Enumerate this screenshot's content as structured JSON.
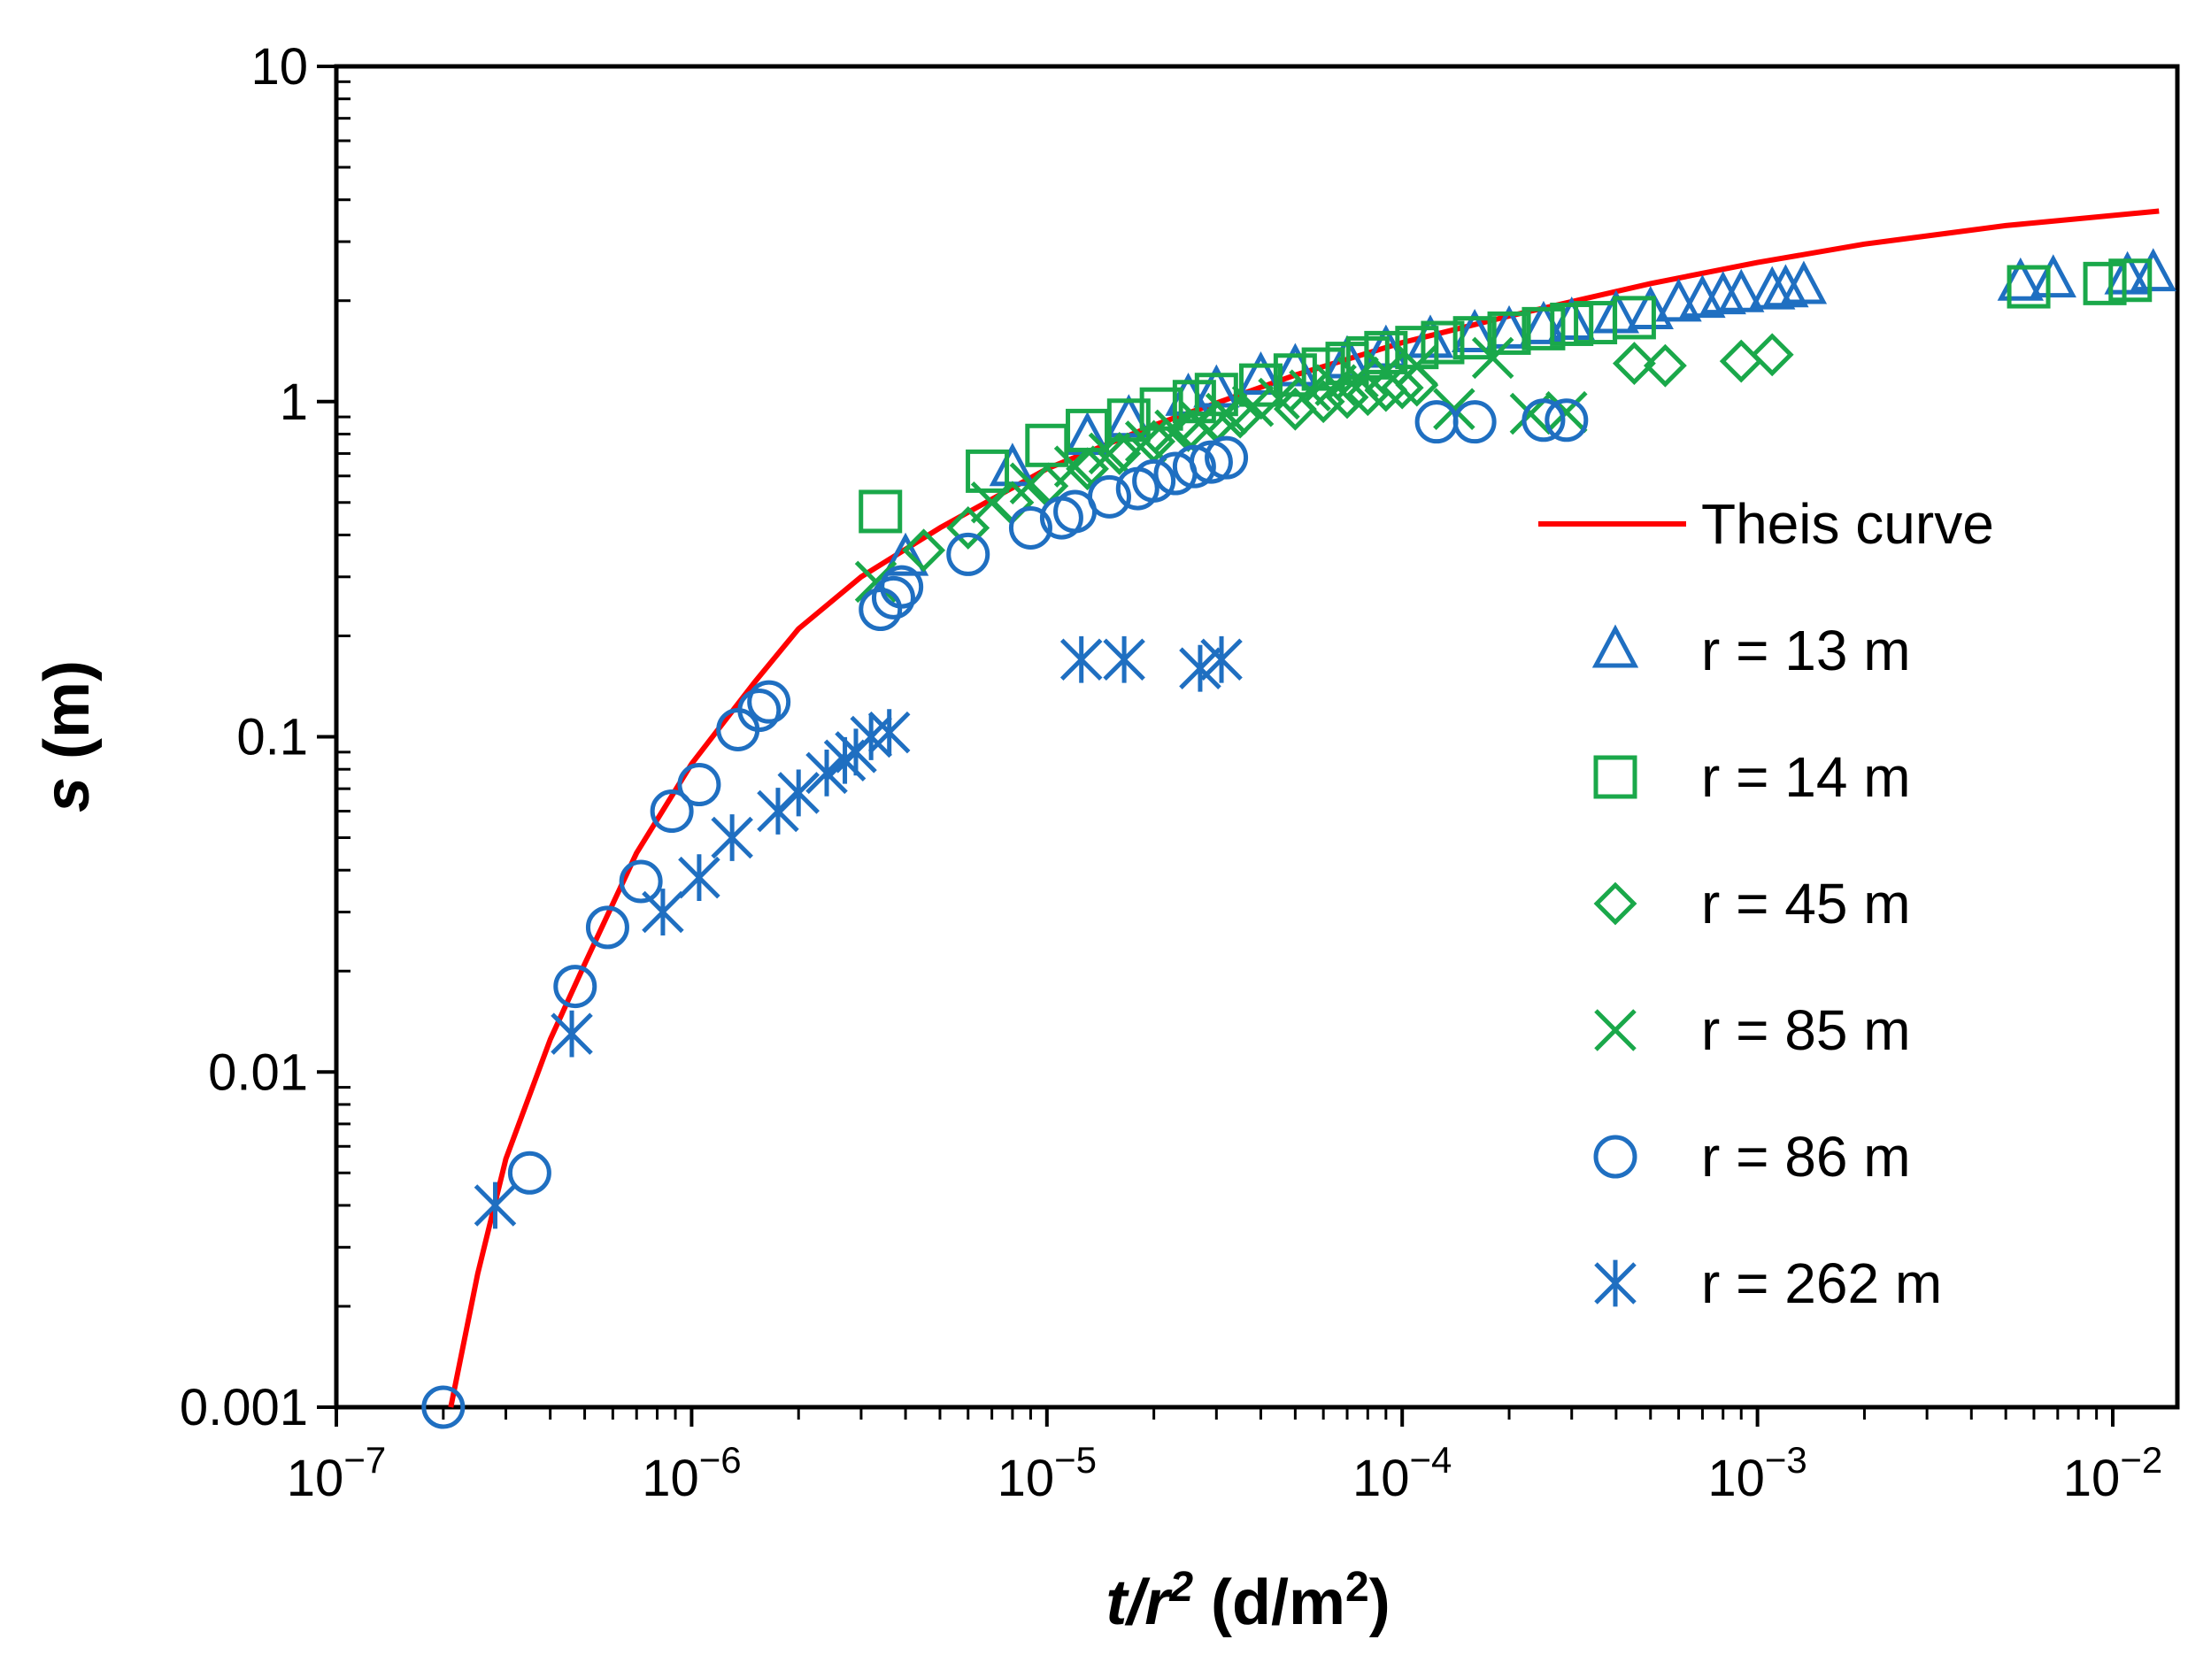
{
  "chart_data": {
    "type": "scatter",
    "title": "",
    "xlabel": {
      "italic": "t/r",
      "sup": "2",
      "rest": " (d/m",
      "rest_sup": "2",
      "close": ")"
    },
    "ylabel": {
      "italic": "s",
      "rest": " (m)"
    },
    "x_scale": "log",
    "y_scale": "log",
    "xlim": [
      1e-07,
      0.0152
    ],
    "ylim": [
      0.001,
      10
    ],
    "x_ticks": [
      {
        "value": 1e-07,
        "base": "10",
        "exp": "−7"
      },
      {
        "value": 1e-06,
        "base": "10",
        "exp": "−6"
      },
      {
        "value": 1e-05,
        "base": "10",
        "exp": "−5"
      },
      {
        "value": 0.0001,
        "base": "10",
        "exp": "−4"
      },
      {
        "value": 0.001,
        "base": "10",
        "exp": "−3"
      },
      {
        "value": 0.01,
        "base": "10",
        "exp": "−2"
      }
    ],
    "y_ticks": [
      {
        "value": 0.001,
        "label": "0.001"
      },
      {
        "value": 0.01,
        "label": "0.01"
      },
      {
        "value": 0.1,
        "label": "0.1"
      },
      {
        "value": 1,
        "label": "1"
      },
      {
        "value": 10,
        "label": "10"
      }
    ],
    "grid": false,
    "legend_position": "right",
    "colors": {
      "red": "#ff0000",
      "blue": "#1f6fc1",
      "green": "#1aa84a"
    },
    "curve": {
      "name": "Theis curve",
      "color": "#ff0000",
      "x": [
        2.1e-07,
        2.5e-07,
        3e-07,
        4e-07,
        5e-07,
        7e-07,
        1e-06,
        1.5e-06,
        2e-06,
        3e-06,
        5e-06,
        1e-05,
        2e-05,
        5e-05,
        0.0001,
        0.0002,
        0.0005,
        0.001,
        0.002,
        0.005,
        0.0135
      ],
      "y": [
        0.001,
        0.0025,
        0.0055,
        0.0125,
        0.021,
        0.045,
        0.083,
        0.145,
        0.21,
        0.3,
        0.42,
        0.63,
        0.85,
        1.2,
        1.5,
        1.8,
        2.25,
        2.6,
        2.95,
        3.35,
        3.7
      ]
    },
    "series": [
      {
        "name": "r = 13 m",
        "marker": "triangle",
        "color": "#1f6fc1",
        "x": [
          4e-06,
          8e-06,
          1.3e-05,
          1.7e-05,
          2.5e-05,
          3e-05,
          4e-05,
          5e-05,
          7e-05,
          9e-05,
          0.00012,
          0.00016,
          0.0002,
          0.00025,
          0.0003,
          0.0004,
          0.0005,
          0.0006,
          0.0007,
          0.0008,
          0.0009,
          0.0011,
          0.0012,
          0.00135,
          0.0055,
          0.0068,
          0.011,
          0.013
        ],
        "y": [
          0.34,
          0.63,
          0.78,
          0.88,
          1.02,
          1.08,
          1.18,
          1.25,
          1.32,
          1.42,
          1.52,
          1.58,
          1.62,
          1.67,
          1.72,
          1.8,
          1.85,
          1.95,
          2.0,
          2.05,
          2.08,
          2.12,
          2.15,
          2.2,
          2.25,
          2.3,
          2.35,
          2.4
        ]
      },
      {
        "name": "r = 14 m",
        "marker": "square",
        "color": "#1aa84a",
        "x": [
          3.4e-06,
          6.8e-06,
          1e-05,
          1.3e-05,
          1.7e-05,
          2.1e-05,
          2.6e-05,
          3e-05,
          4e-05,
          5e-05,
          6e-05,
          7e-05,
          8e-05,
          9e-05,
          0.00011,
          0.00013,
          0.00016,
          0.0002,
          0.00025,
          0.0003,
          0.00035,
          0.00045,
          0.0058,
          0.0095,
          0.0112
        ],
        "y": [
          0.47,
          0.62,
          0.74,
          0.82,
          0.88,
          0.95,
          1.0,
          1.05,
          1.12,
          1.2,
          1.25,
          1.3,
          1.35,
          1.4,
          1.45,
          1.5,
          1.55,
          1.6,
          1.65,
          1.7,
          1.72,
          1.78,
          2.2,
          2.25,
          2.3
        ]
      },
      {
        "name": "r = 45 m",
        "marker": "diamond",
        "color": "#1aa84a",
        "x": [
          4.5e-06,
          6e-06,
          8e-06,
          1e-05,
          1.3e-05,
          1.6e-05,
          2e-05,
          2.5e-05,
          3e-05,
          3.5e-05,
          5e-05,
          6e-05,
          7e-05,
          8e-05,
          9e-05,
          0.0001,
          0.00011,
          0.00045,
          0.00055,
          0.0009,
          0.0011
        ],
        "y": [
          0.36,
          0.42,
          0.5,
          0.56,
          0.63,
          0.7,
          0.76,
          0.82,
          0.87,
          0.9,
          0.95,
          1.0,
          1.03,
          1.05,
          1.08,
          1.1,
          1.12,
          1.3,
          1.28,
          1.32,
          1.38
        ]
      },
      {
        "name": "r = 85 m",
        "marker": "x",
        "color": "#1aa84a",
        "x": [
          3.3e-06,
          7e-06,
          9e-06,
          1.2e-05,
          1.5e-05,
          1.9e-05,
          2.3e-05,
          2.7e-05,
          3.2e-05,
          3.8e-05,
          4.5e-05,
          5.5e-05,
          6.5e-05,
          7.5e-05,
          9e-05,
          0.00011,
          0.00014,
          0.00018,
          0.00023,
          0.00029
        ],
        "y": [
          0.29,
          0.5,
          0.57,
          0.64,
          0.7,
          0.76,
          0.82,
          0.87,
          0.92,
          0.97,
          1.02,
          1.08,
          1.12,
          1.18,
          1.23,
          1.28,
          0.95,
          1.35,
          0.92,
          0.93
        ]
      },
      {
        "name": "r = 86 m",
        "marker": "circle",
        "color": "#1f6fc1",
        "x": [
          2e-07,
          3.5e-07,
          4.7e-07,
          5.8e-07,
          7.2e-07,
          8.8e-07,
          1.05e-06,
          1.35e-06,
          1.55e-06,
          1.65e-06,
          3.4e-06,
          3.7e-06,
          3.9e-06,
          6e-06,
          9e-06,
          1.1e-05,
          1.2e-05,
          1.5e-05,
          1.8e-05,
          2e-05,
          2.3e-05,
          2.6e-05,
          2.9e-05,
          3.2e-05,
          0.000125,
          0.00016,
          0.00025,
          0.00029
        ],
        "y": [
          0.001,
          0.005,
          0.018,
          0.027,
          0.037,
          0.06,
          0.072,
          0.105,
          0.12,
          0.127,
          0.24,
          0.26,
          0.28,
          0.35,
          0.42,
          0.45,
          0.47,
          0.52,
          0.55,
          0.58,
          0.61,
          0.64,
          0.66,
          0.68,
          0.87,
          0.87,
          0.88,
          0.88
        ]
      },
      {
        "name": "r = 262 m",
        "marker": "asterisk",
        "color": "#1f6fc1",
        "x": [
          2.8e-07,
          4.6e-07,
          8.3e-07,
          1.05e-06,
          1.3e-06,
          1.75e-06,
          2e-06,
          2.4e-06,
          2.7e-06,
          2.9e-06,
          3.2e-06,
          3.6e-06,
          1.25e-05,
          1.65e-05,
          2.7e-05,
          3.1e-05
        ],
        "y": [
          0.004,
          0.013,
          0.03,
          0.038,
          0.05,
          0.06,
          0.068,
          0.078,
          0.085,
          0.09,
          0.1,
          0.103,
          0.17,
          0.17,
          0.16,
          0.17
        ]
      }
    ]
  }
}
